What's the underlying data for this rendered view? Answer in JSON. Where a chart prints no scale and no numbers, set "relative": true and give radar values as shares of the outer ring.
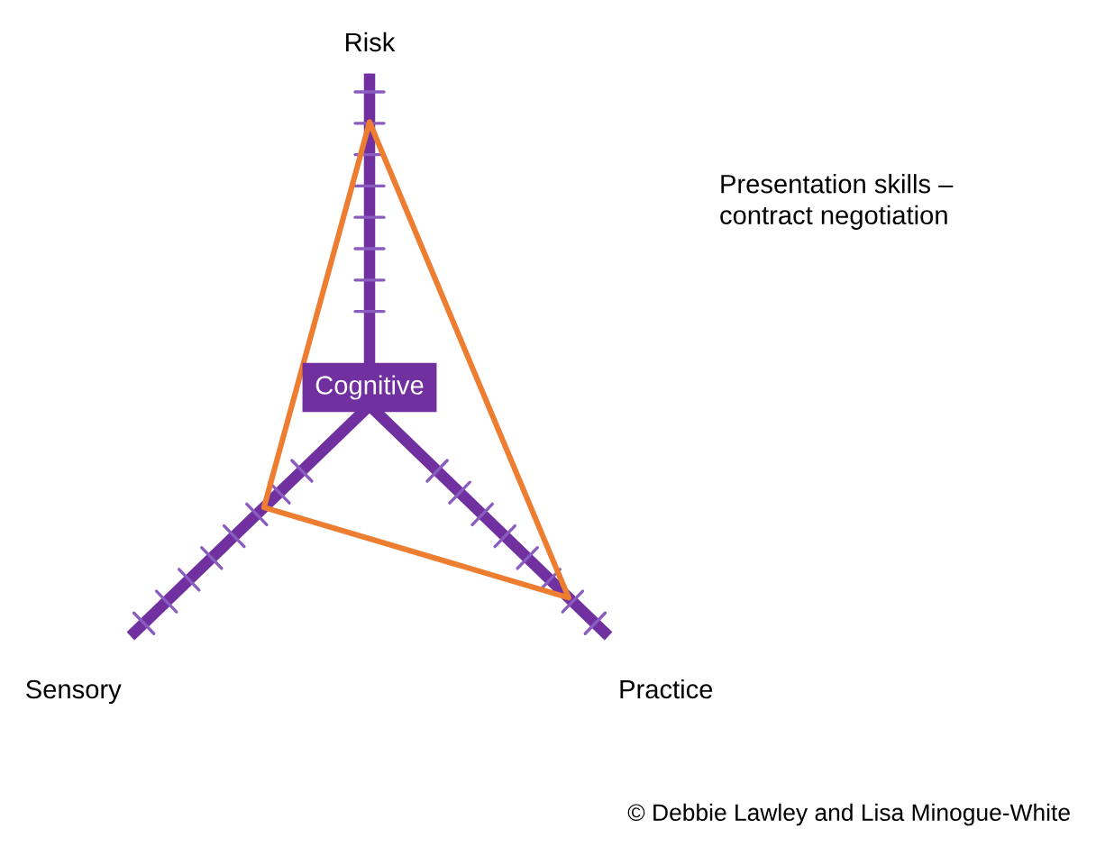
{
  "chart_data": {
    "type": "radar",
    "title": "Presentation skills –\ncontract negotiation",
    "categories": [
      "Risk",
      "Practice",
      "Sensory"
    ],
    "relative": true,
    "series": [
      {
        "color": "#ed7d31",
        "values": [
          0.85,
          0.83,
          0.44
        ]
      }
    ],
    "annotations": [
      "Cognitive",
      "© Debbie Lawley and Lisa Minogue-White"
    ]
  }
}
